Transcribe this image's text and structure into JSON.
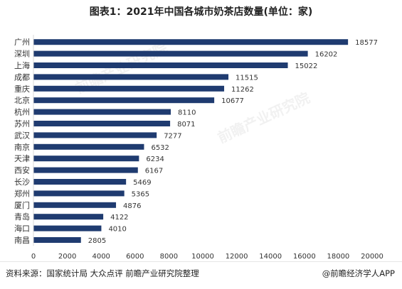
{
  "title": "图表1：2021年中国各城市奶茶店数量(单位：家)",
  "footer": {
    "source": "资料来源：国家统计局 大众点评 前瞻产业研究院整理",
    "brand": "@前瞻经济学人APP"
  },
  "watermark": "前瞻产业研究院",
  "chart_data": {
    "type": "bar",
    "orientation": "horizontal",
    "title": "图表1：2021年中国各城市奶茶店数量(单位：家)",
    "categories": [
      "广州",
      "深圳",
      "上海",
      "成都",
      "重庆",
      "北京",
      "杭州",
      "苏州",
      "武汉",
      "南京",
      "天津",
      "西安",
      "长沙",
      "郑州",
      "厦门",
      "青岛",
      "海口",
      "南昌"
    ],
    "values": [
      18577,
      16202,
      15022,
      11515,
      11262,
      10677,
      8110,
      8071,
      7277,
      6532,
      6234,
      6167,
      5469,
      5365,
      4876,
      4122,
      4010,
      2805
    ],
    "xlim": [
      0,
      20000
    ],
    "xticks": [
      0,
      2000,
      4000,
      6000,
      8000,
      10000,
      12000,
      14000,
      16000,
      18000,
      20000
    ],
    "bar_color": "#1f3b70",
    "grid": false,
    "data_labels": true
  }
}
